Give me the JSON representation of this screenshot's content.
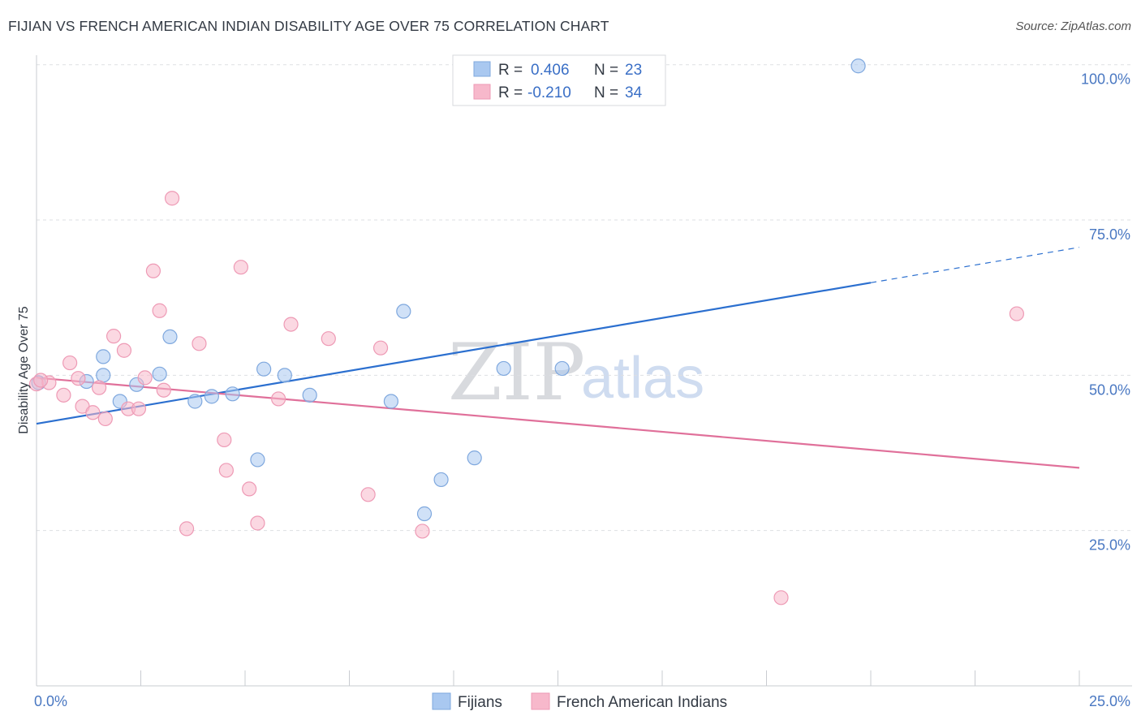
{
  "header": {
    "title": "FIJIAN VS FRENCH AMERICAN INDIAN DISABILITY AGE OVER 75 CORRELATION CHART",
    "source": "Source: ZipAtlas.com"
  },
  "watermark": {
    "zip": "ZIP",
    "atlas": "atlas"
  },
  "legend": {
    "rows": [
      {
        "r_label": "R =",
        "r_value": "0.406",
        "n_label": "N =",
        "n_value": "23",
        "color": "#a9c8f0"
      },
      {
        "r_label": "R =",
        "r_value": "-0.210",
        "n_label": "N =",
        "n_value": "34",
        "color": "#f7b8cb"
      }
    ]
  },
  "bottom_legend": [
    {
      "label": "Fijians",
      "color": "#a9c8f0"
    },
    {
      "label": "French American Indians",
      "color": "#f7b8cb"
    }
  ],
  "chart_data": {
    "type": "scatter",
    "title": "FIJIAN VS FRENCH AMERICAN INDIAN DISABILITY AGE OVER 75 CORRELATION CHART",
    "xlabel": "",
    "ylabel": "Disability Age Over 75",
    "xlim": [
      0,
      25
    ],
    "ylim": [
      0,
      105
    ],
    "x_tick_labels": [
      "0.0%",
      "25.0%"
    ],
    "y_ticks": [
      25,
      50,
      75,
      100
    ],
    "y_tick_labels": [
      "25.0%",
      "50.0%",
      "75.0%",
      "100.0%"
    ],
    "grid": true,
    "legend_position": "top-center",
    "series": [
      {
        "name": "Fijians",
        "color": "#a9c8f0",
        "stroke": "#7fa8de",
        "line_color": "#2b6fcf",
        "trend": {
          "x_start": 0,
          "y_start": 42.2,
          "x_solid_end": 20,
          "y_solid_end": 64.9,
          "x_end": 25,
          "y_end": 70.6
        },
        "points": [
          {
            "x": 0.05,
            "y": 48.8
          },
          {
            "x": 1.2,
            "y": 49.0
          },
          {
            "x": 1.6,
            "y": 50.0
          },
          {
            "x": 1.6,
            "y": 53.0
          },
          {
            "x": 2.0,
            "y": 45.8
          },
          {
            "x": 2.4,
            "y": 48.5
          },
          {
            "x": 2.95,
            "y": 50.2
          },
          {
            "x": 3.2,
            "y": 56.2
          },
          {
            "x": 3.8,
            "y": 45.8
          },
          {
            "x": 4.2,
            "y": 46.6
          },
          {
            "x": 4.7,
            "y": 47.0
          },
          {
            "x": 5.3,
            "y": 36.4
          },
          {
            "x": 5.45,
            "y": 51.0
          },
          {
            "x": 5.95,
            "y": 50.0
          },
          {
            "x": 6.55,
            "y": 46.8
          },
          {
            "x": 8.5,
            "y": 45.8
          },
          {
            "x": 8.8,
            "y": 60.3
          },
          {
            "x": 9.3,
            "y": 27.7
          },
          {
            "x": 9.7,
            "y": 33.2
          },
          {
            "x": 10.5,
            "y": 36.7
          },
          {
            "x": 11.2,
            "y": 51.1
          },
          {
            "x": 12.6,
            "y": 51.1
          },
          {
            "x": 19.7,
            "y": 99.8
          }
        ]
      },
      {
        "name": "French American Indians",
        "color": "#f7b8cb",
        "stroke": "#ee9ab5",
        "line_color": "#e0709a",
        "trend": {
          "x_start": 0,
          "y_start": 49.6,
          "x_end": 25,
          "y_end": 35.1
        },
        "points": [
          {
            "x": 0.0,
            "y": 48.6
          },
          {
            "x": 0.3,
            "y": 48.8
          },
          {
            "x": 0.65,
            "y": 46.8
          },
          {
            "x": 0.8,
            "y": 52.0
          },
          {
            "x": 1.0,
            "y": 49.5
          },
          {
            "x": 1.1,
            "y": 45.0
          },
          {
            "x": 1.35,
            "y": 44.0
          },
          {
            "x": 1.5,
            "y": 48.0
          },
          {
            "x": 1.65,
            "y": 43.0
          },
          {
            "x": 1.85,
            "y": 56.3
          },
          {
            "x": 2.1,
            "y": 54.0
          },
          {
            "x": 2.2,
            "y": 44.6
          },
          {
            "x": 2.45,
            "y": 44.6
          },
          {
            "x": 2.6,
            "y": 49.6
          },
          {
            "x": 2.8,
            "y": 66.8
          },
          {
            "x": 2.95,
            "y": 60.4
          },
          {
            "x": 3.05,
            "y": 47.6
          },
          {
            "x": 3.25,
            "y": 78.5
          },
          {
            "x": 3.6,
            "y": 25.3
          },
          {
            "x": 3.9,
            "y": 55.1
          },
          {
            "x": 4.5,
            "y": 39.6
          },
          {
            "x": 4.55,
            "y": 34.7
          },
          {
            "x": 5.1,
            "y": 31.7
          },
          {
            "x": 5.3,
            "y": 26.2
          },
          {
            "x": 4.9,
            "y": 67.4
          },
          {
            "x": 5.8,
            "y": 46.2
          },
          {
            "x": 6.1,
            "y": 58.2
          },
          {
            "x": 7.0,
            "y": 55.9
          },
          {
            "x": 7.95,
            "y": 30.8
          },
          {
            "x": 8.25,
            "y": 54.4
          },
          {
            "x": 9.25,
            "y": 24.9
          },
          {
            "x": 17.85,
            "y": 14.2
          },
          {
            "x": 23.5,
            "y": 59.9
          },
          {
            "x": 0.1,
            "y": 49.2
          }
        ]
      }
    ]
  }
}
